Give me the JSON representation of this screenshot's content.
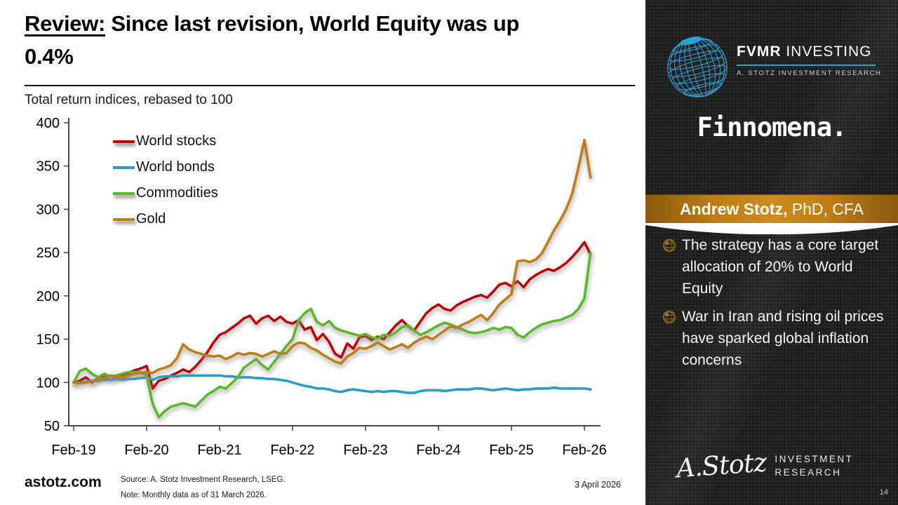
{
  "slide": {
    "title": {
      "lead": "Review:",
      "rest": " Since last revision, World Equity was up",
      "line2": "0.4%"
    },
    "chart_subtitle": "Total return indices, rebased to 100",
    "footer": {
      "site": "astotz.com",
      "source": "Source: A. Stotz Investment Research, LSEG.",
      "note": "Note: Monthly data as of 31 March 2026.",
      "date": "3 April 2026"
    }
  },
  "sidebar": {
    "brand": {
      "bold": "FVMR",
      "rest": " INVESTING",
      "sub": "A. STOTZ INVESTMENT RESEARCH"
    },
    "partner": "Finnomena.",
    "author": {
      "bold": "Andrew Stotz,",
      "rest": " PhD, CFA"
    },
    "bullets": [
      "The strategy has a core target allocation of 20% to World Equity",
      "War in Iran and rising oil prices have sparked global inflation concerns"
    ],
    "logo": {
      "script": "A.Stotz",
      "line1": "INVESTMENT",
      "line2": "RESEARCH"
    },
    "page_number": "14",
    "accent_blue": "#2da0d8",
    "banner_orange": "#c8861a"
  },
  "chart_data": {
    "type": "line",
    "title": "Total return indices, rebased to 100",
    "x_start": "Feb-19",
    "x_end": "Mar-26",
    "x_frequency": "monthly",
    "x_tick_labels": [
      "Feb-19",
      "Feb-20",
      "Feb-21",
      "Feb-22",
      "Feb-23",
      "Feb-24",
      "Feb-25",
      "Feb-26"
    ],
    "ylim": [
      50,
      400
    ],
    "ytick_step": 50,
    "grid": false,
    "legend_position": "top-left-inside",
    "series": [
      {
        "name": "World stocks",
        "color": "#c00000",
        "shadow": true,
        "values": [
          100,
          102,
          106,
          100,
          105,
          107,
          103,
          105,
          108,
          111,
          114,
          116,
          119,
          93,
          102,
          104,
          108,
          111,
          115,
          112,
          118,
          126,
          135,
          146,
          155,
          158,
          163,
          168,
          174,
          177,
          168,
          174,
          177,
          171,
          176,
          170,
          168,
          172,
          161,
          164,
          149,
          156,
          147,
          133,
          129,
          145,
          139,
          152,
          154,
          149,
          153,
          150,
          158,
          166,
          172,
          165,
          160,
          170,
          180,
          186,
          190,
          185,
          183,
          189,
          193,
          196,
          199,
          201,
          198,
          205,
          213,
          215,
          211,
          217,
          210,
          219,
          224,
          228,
          231,
          229,
          233,
          238,
          245,
          253,
          262,
          248
        ]
      },
      {
        "name": "World bonds",
        "color": "#2b9bc7",
        "shadow": false,
        "values": [
          100,
          100,
          101,
          102,
          102,
          103,
          103,
          104,
          103,
          104,
          104,
          105,
          106,
          103,
          106,
          107,
          107,
          107,
          108,
          108,
          108,
          108,
          108,
          108,
          108,
          107,
          107,
          106,
          106,
          106,
          105,
          105,
          104,
          104,
          103,
          102,
          100,
          98,
          96,
          95,
          93,
          93,
          92,
          90,
          89,
          91,
          92,
          91,
          90,
          89,
          90,
          89,
          90,
          90,
          89,
          88,
          88,
          90,
          91,
          91,
          91,
          90,
          91,
          92,
          92,
          92,
          93,
          93,
          92,
          91,
          92,
          93,
          92,
          91,
          92,
          92,
          93,
          93,
          93,
          94,
          93,
          93,
          93,
          93,
          93,
          92
        ]
      },
      {
        "name": "Commodities",
        "color": "#5cb927",
        "shadow": true,
        "values": [
          100,
          113,
          116,
          110,
          106,
          110,
          107,
          108,
          110,
          112,
          112,
          112,
          108,
          75,
          60,
          67,
          72,
          74,
          76,
          74,
          72,
          79,
          86,
          90,
          95,
          93,
          99,
          106,
          117,
          122,
          127,
          120,
          115,
          124,
          133,
          142,
          150,
          172,
          180,
          185,
          170,
          166,
          171,
          163,
          160,
          158,
          156,
          154,
          156,
          152,
          151,
          155,
          154,
          158,
          164,
          166,
          160,
          155,
          158,
          162,
          166,
          169,
          167,
          164,
          161,
          158,
          157,
          158,
          160,
          163,
          161,
          164,
          163,
          155,
          152,
          158,
          163,
          167,
          169,
          171,
          172,
          175,
          178,
          185,
          197,
          250
        ]
      },
      {
        "name": "Gold",
        "color": "#bf7d17",
        "shadow": true,
        "values": [
          100,
          99,
          100,
          101,
          104,
          105,
          108,
          107,
          106,
          108,
          110,
          111,
          112,
          111,
          115,
          117,
          120,
          128,
          144,
          138,
          135,
          133,
          131,
          130,
          131,
          127,
          130,
          134,
          132,
          134,
          133,
          130,
          133,
          136,
          133,
          134,
          142,
          146,
          145,
          140,
          137,
          132,
          128,
          124,
          122,
          130,
          134,
          140,
          139,
          142,
          146,
          142,
          138,
          141,
          144,
          140,
          146,
          150,
          153,
          150,
          155,
          160,
          165,
          163,
          167,
          170,
          174,
          178,
          172,
          180,
          190,
          196,
          202,
          240,
          241,
          239,
          242,
          249,
          262,
          276,
          287,
          300,
          318,
          348,
          380,
          337
        ]
      }
    ]
  }
}
